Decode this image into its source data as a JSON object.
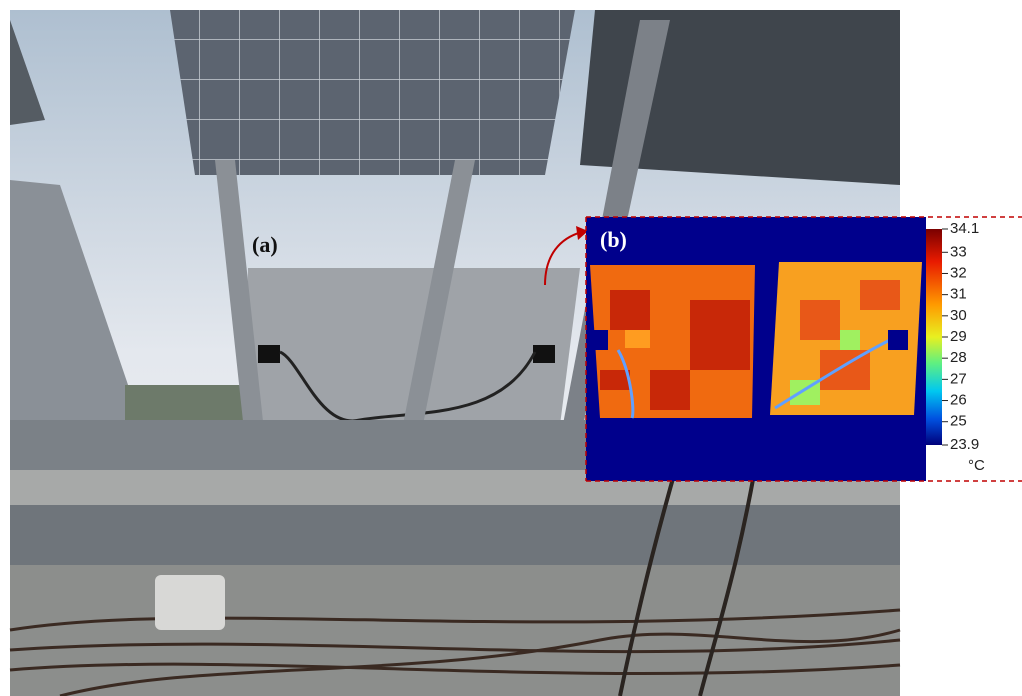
{
  "labels": {
    "a": "(a)",
    "b": "(b)"
  },
  "colorbar": {
    "range": [
      23.9,
      34.1
    ],
    "ticks": [
      34.1,
      33,
      32,
      31,
      30,
      29,
      28,
      27,
      26,
      25,
      23.9
    ],
    "unit": "°C"
  }
}
